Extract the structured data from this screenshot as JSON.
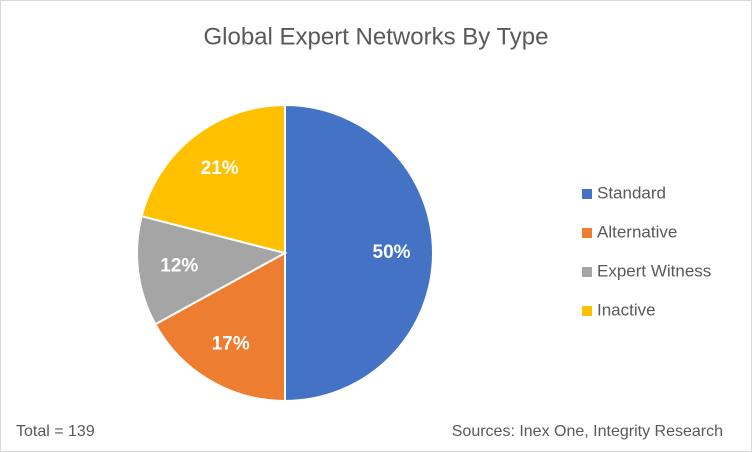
{
  "chart_data": {
    "type": "pie",
    "title": "Global Expert Networks By Type",
    "categories": [
      "Standard",
      "Alternative",
      "Expert Witness",
      "Inactive"
    ],
    "values": [
      50,
      17,
      12,
      21
    ],
    "value_labels": [
      "50%",
      "17%",
      "12%",
      "21%"
    ],
    "colors": [
      "#4472c4",
      "#ed7d31",
      "#a5a5a5",
      "#ffc000"
    ],
    "legend": "right",
    "annotations": [
      "Total = 139",
      "Sources: Inex One, Integrity Research"
    ]
  }
}
